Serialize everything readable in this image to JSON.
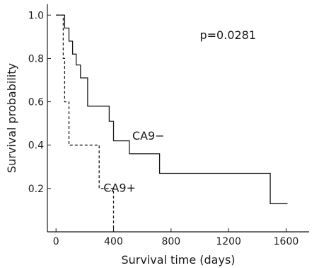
{
  "chart_data": {
    "type": "line",
    "step": true,
    "xlabel": "Survival time (days)",
    "ylabel": "Survival probability",
    "xlim": [
      -60,
      1760
    ],
    "ylim": [
      0,
      1.05
    ],
    "xticks": [
      0,
      400,
      800,
      1200,
      1600
    ],
    "yticks": [
      0.2,
      0.4,
      0.6,
      0.8,
      1.0
    ],
    "ytick_labels": [
      "0.2",
      "0.4",
      "0.6",
      "0.8",
      "1.0"
    ],
    "grid": false,
    "annotations": [
      {
        "text": "p=0.0281",
        "x": 1000,
        "y": 0.89
      },
      {
        "text": "CA9−",
        "x": 530,
        "y": 0.425
      },
      {
        "text": "CA9+",
        "x": 330,
        "y": 0.185
      }
    ],
    "series": [
      {
        "name": "CA9−",
        "style": "solid",
        "points": [
          [
            0,
            1.0
          ],
          [
            60,
            1.0
          ],
          [
            60,
            0.94
          ],
          [
            90,
            0.94
          ],
          [
            90,
            0.88
          ],
          [
            115,
            0.88
          ],
          [
            115,
            0.82
          ],
          [
            140,
            0.82
          ],
          [
            140,
            0.77
          ],
          [
            170,
            0.77
          ],
          [
            170,
            0.71
          ],
          [
            220,
            0.71
          ],
          [
            220,
            0.58
          ],
          [
            370,
            0.58
          ],
          [
            370,
            0.51
          ],
          [
            400,
            0.51
          ],
          [
            400,
            0.42
          ],
          [
            510,
            0.42
          ],
          [
            510,
            0.36
          ],
          [
            720,
            0.36
          ],
          [
            720,
            0.27
          ],
          [
            1490,
            0.27
          ],
          [
            1490,
            0.13
          ],
          [
            1610,
            0.13
          ]
        ]
      },
      {
        "name": "CA9+",
        "style": "dashed",
        "points": [
          [
            0,
            1.0
          ],
          [
            50,
            1.0
          ],
          [
            50,
            0.8
          ],
          [
            60,
            0.8
          ],
          [
            60,
            0.6
          ],
          [
            90,
            0.6
          ],
          [
            90,
            0.4
          ],
          [
            300,
            0.4
          ],
          [
            300,
            0.2
          ],
          [
            400,
            0.2
          ],
          [
            400,
            0.0
          ]
        ]
      }
    ]
  }
}
